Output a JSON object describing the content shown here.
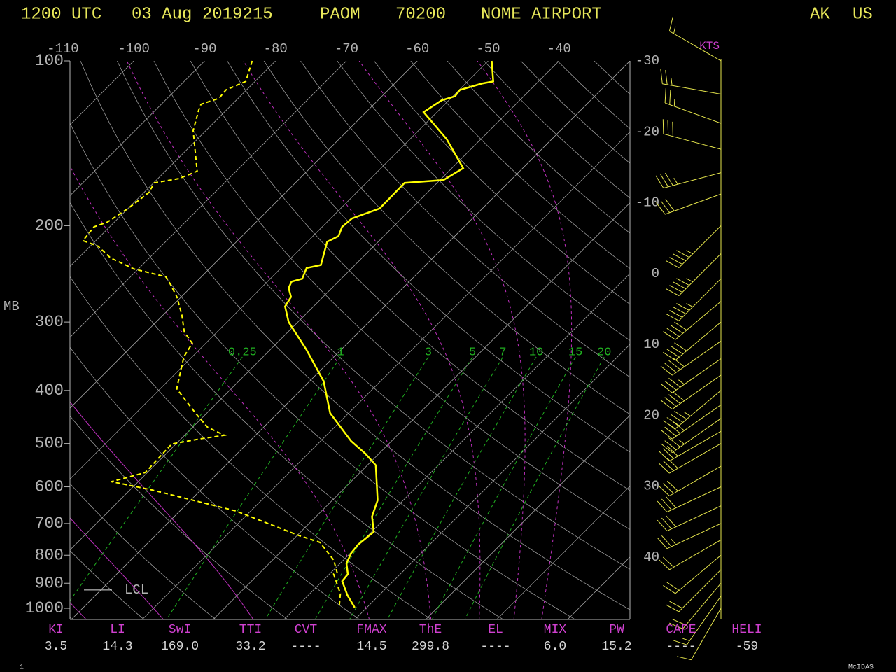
{
  "chart_data": {
    "type": "skewt",
    "header": {
      "time": "1200 UTC",
      "date": "03 Aug 2019215",
      "station_id": "PAOM",
      "station_number": "70200",
      "station_name": "NOME AIRPORT",
      "state": "AK",
      "country": "US"
    },
    "ylabel": "MB",
    "log_y": true,
    "ylim": [
      1050,
      100
    ],
    "yticks": [
      100,
      200,
      300,
      400,
      500,
      600,
      700,
      800,
      900,
      1000
    ],
    "xlim": [
      -109,
      -30
    ],
    "xticks": [
      -110,
      -100,
      -90,
      -80,
      -70,
      -60,
      -50,
      -40,
      -30,
      -20,
      -10,
      0,
      10,
      20,
      30,
      40
    ],
    "grid": true,
    "mixing_ratios": [
      0.25,
      1,
      3,
      5,
      7,
      10,
      15,
      20
    ],
    "series": [
      {
        "color": "#ffff00",
        "dashed": false,
        "pressure": [
          100,
          109,
          110,
          113,
          116,
          118,
          124,
          139,
          157,
          165,
          167,
          186,
          194,
          201,
          209,
          214,
          236,
          239,
          250,
          253,
          260,
          270,
          281,
          300,
          337,
          385,
          440,
          495,
          522,
          548,
          635,
          680,
          725,
          765,
          792,
          828,
          866,
          892,
          946,
          997
        ],
        "values": [
          -49.5,
          -46.4,
          -47.7,
          -49.9,
          -49.7,
          -51.0,
          -51.9,
          -44.8,
          -38.4,
          -39.5,
          -44.6,
          -44.5,
          -47.0,
          -47.2,
          -46.4,
          -47.2,
          -44.8,
          -46.4,
          -45.5,
          -46.6,
          -46.1,
          -44.5,
          -44.0,
          -41.3,
          -34.9,
          -28.0,
          -22.6,
          -15.7,
          -11.9,
          -8.8,
          -3.6,
          -2.1,
          0.3,
          -0.1,
          0.1,
          0.9,
          2.6,
          2.8,
          5.5,
          8.3
        ]
      },
      {
        "color": "#ffff00",
        "dashed": true,
        "pressure": [
          100,
          109,
          113,
          117,
          120,
          123,
          134,
          159,
          164,
          167,
          174,
          186,
          197,
          201,
          213,
          218,
          229,
          240,
          248,
          255,
          270,
          291,
          313,
          328,
          347,
          397,
          440,
          467,
          483,
          490,
          501,
          565,
          587,
          608,
          664,
          736,
          758,
          816,
          861,
          866,
          940,
          997
        ],
        "values": [
          -83.3,
          -81.3,
          -82.9,
          -82.7,
          -84.4,
          -83.9,
          -81.8,
          -75.5,
          -77.0,
          -79.9,
          -79.3,
          -80.0,
          -81.0,
          -82.2,
          -81.8,
          -78.9,
          -75.5,
          -70.6,
          -65.0,
          -63.5,
          -60.6,
          -57.4,
          -54.6,
          -51.9,
          -51.2,
          -47.7,
          -41.6,
          -37.9,
          -34.4,
          -37.2,
          -40.6,
          -40.3,
          -43.8,
          -36.9,
          -22.1,
          -9.8,
          -5.8,
          -1.4,
          0.9,
          0.6,
          4.3,
          6.1
        ]
      }
    ],
    "lcl": {
      "label": "LCL",
      "pressure": 926
    },
    "winds": {
      "unit": "KTS",
      "pressure": [
        100,
        115,
        130,
        145,
        160,
        175,
        200,
        225,
        250,
        275,
        300,
        325,
        350,
        375,
        400,
        425,
        450,
        475,
        500,
        550,
        600,
        650,
        700,
        750,
        800,
        850,
        900,
        950,
        1000
      ],
      "direction": [
        300,
        280,
        290,
        285,
        255,
        250,
        225,
        225,
        225,
        230,
        230,
        235,
        235,
        235,
        230,
        235,
        235,
        240,
        240,
        240,
        245,
        245,
        245,
        240,
        230,
        225,
        220,
        215,
        210
      ],
      "speed": [
        15,
        25,
        25,
        30,
        35,
        30,
        45,
        45,
        45,
        40,
        40,
        40,
        35,
        40,
        45,
        40,
        35,
        30,
        30,
        30,
        30,
        30,
        25,
        20,
        20,
        20,
        20,
        15,
        10
      ]
    },
    "indices": [
      {
        "label": "KI",
        "value": "3.5"
      },
      {
        "label": "LI",
        "value": "14.3"
      },
      {
        "label": "SwI",
        "value": "169.0"
      },
      {
        "label": "TTI",
        "value": "33.2"
      },
      {
        "label": "CVT",
        "value": "----"
      },
      {
        "label": "FMAX",
        "value": "14.5"
      },
      {
        "label": "ThE",
        "value": "299.8"
      },
      {
        "label": "EL",
        "value": "----"
      },
      {
        "label": "MIX",
        "value": "6.0"
      },
      {
        "label": "PW",
        "value": "15.2"
      },
      {
        "label": "CAPE",
        "value": "----"
      },
      {
        "label": "HELI",
        "value": "-59"
      }
    ],
    "page_number": "1",
    "credit": "McIDAS"
  }
}
